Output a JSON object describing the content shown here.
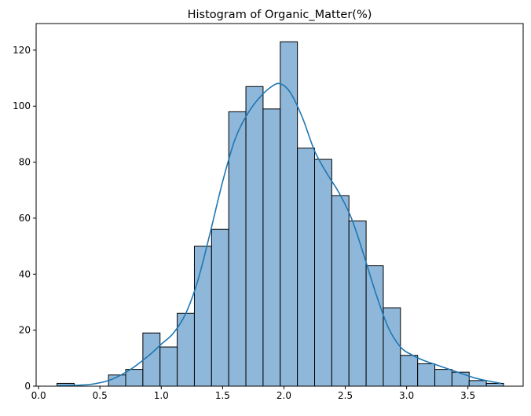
{
  "chart_data": {
    "type": "bar",
    "title": "Histogram of Organic_Matter(%)",
    "xlabel": "",
    "ylabel": "",
    "xlim": [
      -0.02,
      3.95
    ],
    "ylim": [
      0,
      129.5
    ],
    "xticks": [
      0.0,
      0.5,
      1.0,
      1.5,
      2.0,
      2.5,
      3.0,
      3.5
    ],
    "xtick_labels": [
      "0.0",
      "0.5",
      "1.0",
      "1.5",
      "2.0",
      "2.5",
      "3.0",
      "3.5"
    ],
    "yticks": [
      0,
      20,
      40,
      60,
      80,
      100,
      120
    ],
    "ytick_labels": [
      "0",
      "20",
      "40",
      "60",
      "80",
      "100",
      "120"
    ],
    "bin_edges": [
      0.15,
      0.29,
      0.43,
      0.57,
      0.71,
      0.85,
      0.99,
      1.13,
      1.27,
      1.41,
      1.55,
      1.69,
      1.83,
      1.97,
      2.11,
      2.25,
      2.39,
      2.53,
      2.67,
      2.81,
      2.95,
      3.09,
      3.23,
      3.37,
      3.51,
      3.65,
      3.79
    ],
    "counts": [
      1,
      0,
      0,
      4,
      6,
      19,
      14,
      26,
      50,
      56,
      98,
      107,
      99,
      123,
      85,
      81,
      68,
      59,
      43,
      28,
      11,
      8,
      6,
      5,
      2,
      1
    ],
    "kde": {
      "x": [
        0.15,
        0.3,
        0.45,
        0.6,
        0.75,
        0.9,
        1.0,
        1.1,
        1.2,
        1.3,
        1.4,
        1.5,
        1.6,
        1.7,
        1.8,
        1.9,
        1.97,
        2.05,
        2.15,
        2.25,
        2.35,
        2.45,
        2.55,
        2.65,
        2.75,
        2.85,
        2.95,
        3.05,
        3.15,
        3.25,
        3.35,
        3.45,
        3.55,
        3.65,
        3.77
      ],
      "y": [
        0.2,
        0.3,
        0.8,
        2.5,
        6,
        11,
        15,
        19,
        26,
        38,
        55,
        73,
        88,
        97,
        103,
        107,
        108,
        105,
        96,
        84,
        76,
        69,
        60,
        47,
        33,
        21,
        14,
        11,
        9,
        7.5,
        6,
        4.5,
        3,
        2,
        1
      ]
    },
    "colors": {
      "bar_fill": "#8fb7d9",
      "bar_edge": "#000000",
      "kde_line": "#1f77b4",
      "axis": "#000000"
    },
    "grid": false,
    "legend": "none"
  }
}
